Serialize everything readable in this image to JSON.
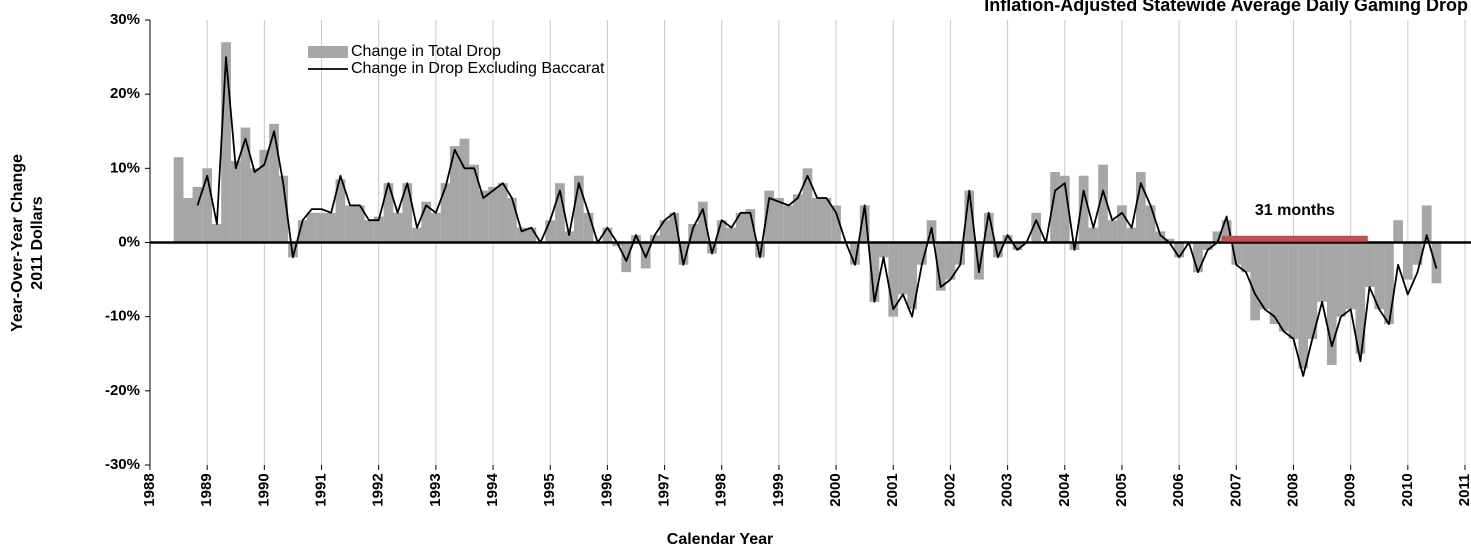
{
  "chart_data": {
    "type": "bar_line",
    "title": "Inflation-Adjusted Statewide Average Daily Gaming Drop",
    "xlabel": "Calendar Year",
    "ylabel": [
      "Year-Over-Year Change",
      "2011 Dollars"
    ],
    "x": [
      1988.5,
      1988.67,
      1988.83,
      1989,
      1989.17,
      1989.33,
      1989.5,
      1989.67,
      1989.83,
      1990,
      1990.17,
      1990.33,
      1990.5,
      1990.67,
      1990.83,
      1991,
      1991.17,
      1991.33,
      1991.5,
      1991.67,
      1991.83,
      1992,
      1992.17,
      1992.33,
      1992.5,
      1992.67,
      1992.83,
      1993,
      1993.17,
      1993.33,
      1993.5,
      1993.67,
      1993.83,
      1994,
      1994.17,
      1994.33,
      1994.5,
      1994.67,
      1994.83,
      1995,
      1995.17,
      1995.33,
      1995.5,
      1995.67,
      1995.83,
      1996,
      1996.17,
      1996.33,
      1996.5,
      1996.67,
      1996.83,
      1997,
      1997.17,
      1997.33,
      1997.5,
      1997.67,
      1997.83,
      1998,
      1998.17,
      1998.33,
      1998.5,
      1998.67,
      1998.83,
      1999,
      1999.17,
      1999.33,
      1999.5,
      1999.67,
      1999.83,
      2000,
      2000.17,
      2000.33,
      2000.5,
      2000.67,
      2000.83,
      2001,
      2001.17,
      2001.33,
      2001.5,
      2001.67,
      2001.83,
      2002,
      2002.17,
      2002.33,
      2002.5,
      2002.67,
      2002.83,
      2003,
      2003.17,
      2003.33,
      2003.5,
      2003.67,
      2003.83,
      2004,
      2004.17,
      2004.33,
      2004.5,
      2004.67,
      2004.83,
      2005,
      2005.17,
      2005.33,
      2005.5,
      2005.67,
      2005.83,
      2006,
      2006.17,
      2006.33,
      2006.5,
      2006.67,
      2006.83,
      2007,
      2007.17,
      2007.33,
      2007.5,
      2007.67,
      2007.83,
      2008,
      2008.17,
      2008.33,
      2008.5,
      2008.67,
      2008.83,
      2009,
      2009.17,
      2009.33,
      2009.5,
      2009.67,
      2009.83,
      2010,
      2010.17,
      2010.33,
      2010.5
    ],
    "series": [
      {
        "name": "Change in Total Drop",
        "kind": "bar",
        "color": "#a6a6a6",
        "values": [
          11.5,
          6,
          7.5,
          10,
          2.5,
          27,
          11,
          15.5,
          10,
          12.5,
          16,
          9,
          -2,
          3,
          4,
          4,
          4,
          8.5,
          5,
          5,
          3,
          3.5,
          8,
          4,
          8,
          2,
          5.5,
          4,
          8,
          13,
          14,
          10.5,
          7,
          7.5,
          8,
          6,
          2,
          2,
          0,
          3,
          8,
          1.5,
          9,
          4,
          0,
          2,
          -0.5,
          -4,
          1,
          -3.5,
          1,
          3,
          4,
          -3,
          2.5,
          5.5,
          -1.5,
          3,
          2,
          4,
          4.5,
          -2,
          7,
          6,
          5,
          6.5,
          10,
          6,
          6,
          5,
          0,
          -3,
          5,
          -8,
          -2,
          -10,
          -7,
          -9,
          -3,
          3,
          -6.5,
          -5,
          -3,
          7,
          -5,
          4,
          -2,
          1,
          -1,
          0,
          4,
          0,
          9.5,
          9,
          -1,
          9,
          2,
          10.5,
          3,
          5,
          2,
          9.5,
          5,
          1.5,
          0.5,
          -2,
          0,
          -4,
          -1,
          1.5,
          3,
          -3,
          -4,
          -10.5,
          -9,
          -11,
          -12,
          -13,
          -17,
          -13,
          -8,
          -16.5,
          -10,
          -9,
          -15,
          -6,
          -9,
          -11,
          3,
          -5,
          -3,
          5,
          -5.5
        ]
      },
      {
        "name": "Change in Drop Excluding Baccarat",
        "kind": "line",
        "color": "#000000",
        "values": [
          null,
          null,
          5,
          9,
          2.5,
          25,
          10,
          14,
          9.5,
          10.5,
          15,
          8,
          -2,
          3,
          4.5,
          4.5,
          4,
          9,
          5,
          5,
          3,
          3,
          8,
          4,
          8,
          2,
          5,
          4,
          7.5,
          12.5,
          10,
          10,
          6,
          7,
          8,
          6,
          1.5,
          2,
          0,
          3,
          7,
          1,
          8,
          4,
          0,
          2,
          0,
          -2.5,
          1,
          -2,
          1,
          3,
          4,
          -3,
          2,
          4.5,
          -1.5,
          3,
          2,
          4,
          4,
          -2,
          6,
          5.5,
          5,
          6,
          9,
          6,
          6,
          4,
          0,
          -3,
          5,
          -8,
          -2,
          -9,
          -7,
          -10,
          -3,
          2,
          -6,
          -5,
          -3,
          7,
          -4,
          4,
          -2,
          1,
          -1,
          0,
          3,
          0,
          7,
          8,
          -1,
          7,
          2,
          7,
          3,
          4,
          2,
          8,
          5,
          1,
          0,
          -2,
          0,
          -4,
          -1,
          0,
          3.5,
          -3,
          -4,
          -7,
          -9,
          -10,
          -12,
          -13,
          -18,
          -13,
          -8,
          -14,
          -10,
          -9,
          -16,
          -6,
          -9,
          -11,
          -3,
          -7,
          -4,
          1,
          -3.5
        ]
      }
    ],
    "annotation": {
      "text": "31 months",
      "x": [
        2006.75,
        2009.3
      ],
      "y": 0.5,
      "color": "#c0504d"
    },
    "xlim": [
      1988,
      2011
    ],
    "xticks": [
      1988,
      1989,
      1990,
      1991,
      1992,
      1993,
      1994,
      1995,
      1996,
      1997,
      1998,
      1999,
      2000,
      2001,
      2002,
      2003,
      2004,
      2005,
      2006,
      2007,
      2008,
      2009,
      2010,
      2011
    ],
    "ylim": [
      -30,
      30
    ],
    "yticks": [
      {
        "value": -30,
        "label": "-30%"
      },
      {
        "value": -20,
        "label": "-20%"
      },
      {
        "value": -10,
        "label": "-10%"
      },
      {
        "value": 0,
        "label": "0%"
      },
      {
        "value": 10,
        "label": "10%"
      },
      {
        "value": 20,
        "label": "20%"
      },
      {
        "value": 30,
        "label": "30%"
      }
    ],
    "grid": "x",
    "legend": "upper left"
  }
}
